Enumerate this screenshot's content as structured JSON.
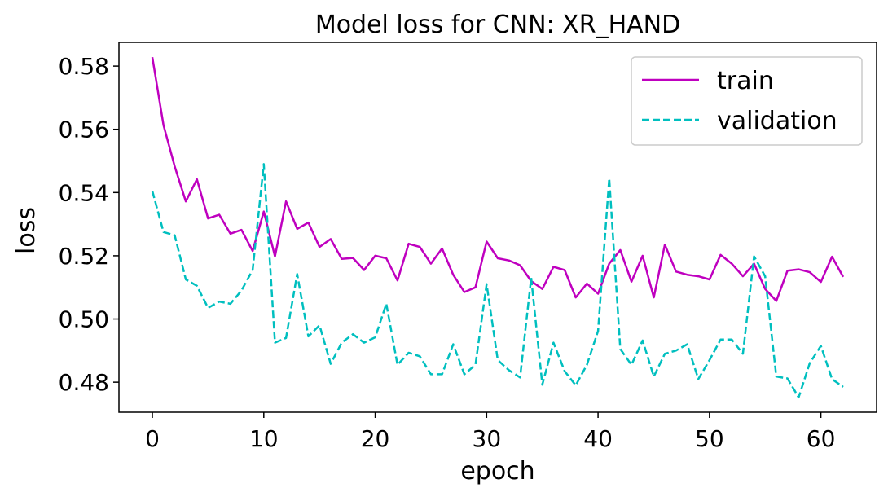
{
  "chart_data": {
    "type": "line",
    "title": "Model loss for CNN: XR_HAND",
    "xlabel": "epoch",
    "ylabel": "loss",
    "xlim": [
      -3,
      65
    ],
    "ylim": [
      0.4705,
      0.5875
    ],
    "xticks": [
      0,
      10,
      20,
      30,
      40,
      50,
      60
    ],
    "yticks": [
      0.48,
      0.5,
      0.52,
      0.54,
      0.56,
      0.58
    ],
    "xtick_labels": [
      "0",
      "10",
      "20",
      "30",
      "40",
      "50",
      "60"
    ],
    "ytick_labels": [
      "0.48",
      "0.50",
      "0.52",
      "0.54",
      "0.56",
      "0.58"
    ],
    "grid": false,
    "legend_position": "top-right",
    "x": [
      0,
      1,
      2,
      3,
      4,
      5,
      6,
      7,
      8,
      9,
      10,
      11,
      12,
      13,
      14,
      15,
      16,
      17,
      18,
      19,
      20,
      21,
      22,
      23,
      24,
      25,
      26,
      27,
      28,
      29,
      30,
      31,
      32,
      33,
      34,
      35,
      36,
      37,
      38,
      39,
      40,
      41,
      42,
      43,
      44,
      45,
      46,
      47,
      48,
      49,
      50,
      51,
      52,
      53,
      54,
      55,
      56,
      57,
      58,
      59,
      60,
      61,
      62
    ],
    "series": [
      {
        "name": "train",
        "color": "#bf00bf",
        "style": "solid",
        "values": [
          0.5828,
          0.5613,
          0.5483,
          0.5372,
          0.5442,
          0.5318,
          0.533,
          0.527,
          0.5282,
          0.5215,
          0.534,
          0.5198,
          0.5372,
          0.5285,
          0.5305,
          0.5228,
          0.5253,
          0.519,
          0.5193,
          0.5155,
          0.52,
          0.5192,
          0.5122,
          0.5238,
          0.5228,
          0.5175,
          0.5223,
          0.514,
          0.5085,
          0.51,
          0.5245,
          0.5192,
          0.5185,
          0.517,
          0.512,
          0.5095,
          0.5165,
          0.5155,
          0.5068,
          0.5112,
          0.508,
          0.5175,
          0.5218,
          0.5118,
          0.52,
          0.5068,
          0.5235,
          0.515,
          0.514,
          0.5135,
          0.5125,
          0.5203,
          0.5175,
          0.5135,
          0.5175,
          0.5095,
          0.5057,
          0.5153,
          0.5157,
          0.5148,
          0.5117,
          0.5197,
          0.5133
        ]
      },
      {
        "name": "validation",
        "color": "#00bfbf",
        "style": "dashed",
        "values": [
          0.5405,
          0.5275,
          0.5265,
          0.5125,
          0.5105,
          0.5035,
          0.5055,
          0.5048,
          0.509,
          0.5155,
          0.549,
          0.4925,
          0.494,
          0.5142,
          0.4945,
          0.498,
          0.4858,
          0.4925,
          0.4952,
          0.4925,
          0.4942,
          0.5048,
          0.4855,
          0.4893,
          0.4882,
          0.4825,
          0.4825,
          0.492,
          0.4825,
          0.4855,
          0.511,
          0.487,
          0.4838,
          0.4815,
          0.513,
          0.4792,
          0.4925,
          0.4835,
          0.479,
          0.4855,
          0.4962,
          0.5445,
          0.4905,
          0.4855,
          0.4932,
          0.4818,
          0.489,
          0.49,
          0.492,
          0.481,
          0.487,
          0.4935,
          0.4935,
          0.489,
          0.5198,
          0.5135,
          0.4818,
          0.4812,
          0.4752,
          0.486,
          0.4915,
          0.481,
          0.4785
        ]
      }
    ]
  }
}
